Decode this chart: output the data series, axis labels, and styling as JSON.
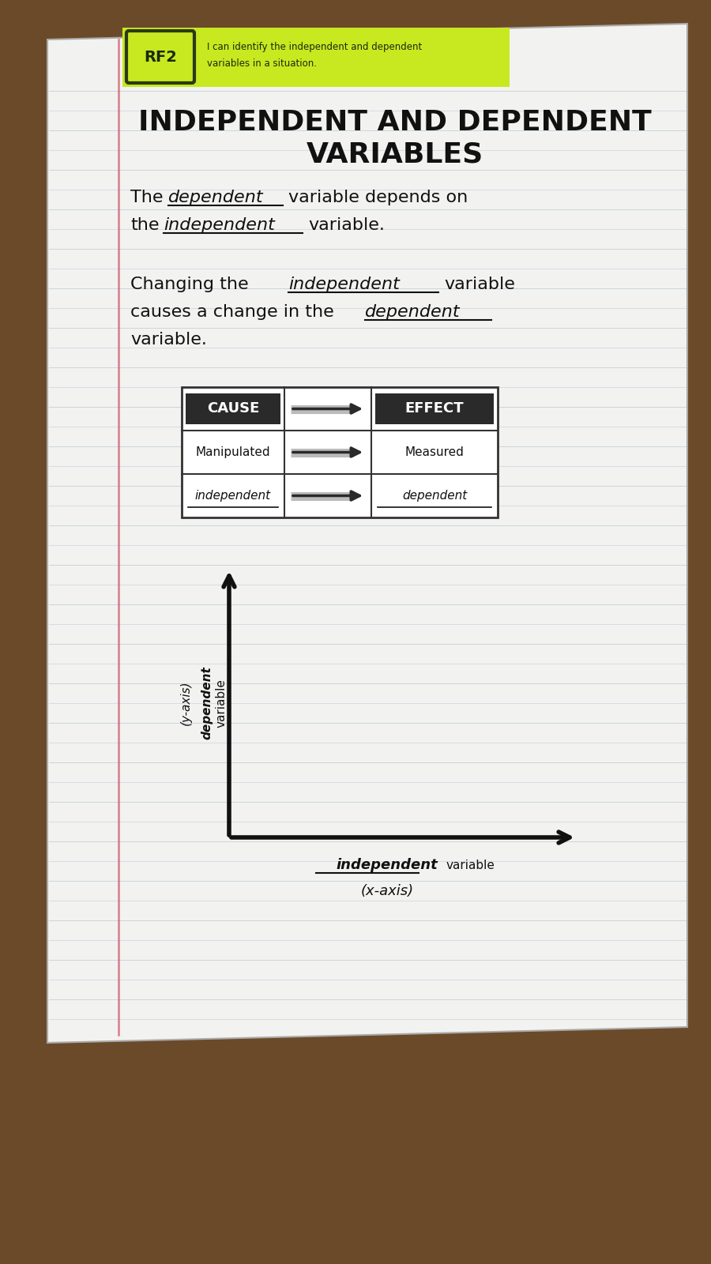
{
  "wood_color": "#6B4A2A",
  "paper_white": "#f2f2f0",
  "line_blue": "#b8c8d8",
  "line_blue2": "#c8d4e0",
  "margin_red": "#d06070",
  "rf2_bg": "#c8e820",
  "rf2_label": "RF2",
  "rf2_desc1": "I can identify the independent and dependent",
  "rf2_desc2": "variables in a situation.",
  "title_line1": "INDEPENDENT AND DEPENDENT",
  "title_line2": "VARIABLES",
  "sent1_a": "The",
  "sent1_b": "dependent",
  "sent1_c": "variable depends on",
  "sent1_d": "the",
  "sent1_e": "independent",
  "sent1_f": "variable.",
  "sent2_a": "Changing the",
  "sent2_b": "independent",
  "sent2_c": "variable",
  "sent2_d": "causes a change in the",
  "sent2_e": "dependent",
  "sent2_f": "variable.",
  "table_cause": "CAUSE",
  "table_effect": "EFFECT",
  "table_r1c1": "Manipulated",
  "table_r1c3": "Measured",
  "table_r2c1": "independent",
  "table_r2c3": "dependent",
  "yaxis_label1": "(y-axis)",
  "yaxis_label2": "dependent",
  "yaxis_label3": "variable",
  "xaxis_label1": "independent",
  "xaxis_label2": "variable",
  "xaxis_label3": "(x-axis)"
}
